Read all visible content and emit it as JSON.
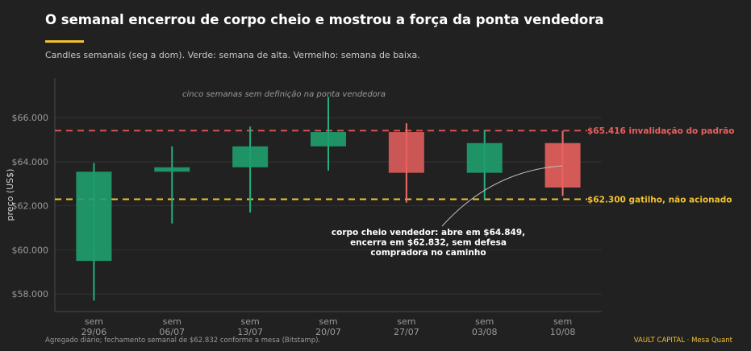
{
  "header": {
    "title": "O semanal encerrou de corpo cheio e mostrou a força da ponta vendedora",
    "subtitle": "Candles semanais (seg a dom). Verde: semana de alta. Vermelho: semana de baixa."
  },
  "footer": {
    "source": "Agregado diário; fechamento semanal de $62.832 conforme a mesa (Bitstamp).",
    "brand": "VAULT CAPITAL  ·  Mesa Quant"
  },
  "colors": {
    "background": "#212121",
    "up": "#1f9e6e",
    "down": "#e8605e",
    "trigger": "#f2c12e",
    "invalidation": "#d9534f"
  },
  "chart_data": {
    "type": "candlestick",
    "ylabel": "preço (US$)",
    "ylim": [
      57200,
      67800
    ],
    "yticks": [
      58000,
      60000,
      62000,
      64000,
      66000
    ],
    "ytick_labels": [
      "$58.000",
      "$60.000",
      "$62.000",
      "$64.000",
      "$66.000"
    ],
    "grid": true,
    "categories": [
      [
        "sem",
        "29/06"
      ],
      [
        "sem",
        "06/07"
      ],
      [
        "sem",
        "13/07"
      ],
      [
        "sem",
        "20/07"
      ],
      [
        "sem",
        "27/07"
      ],
      [
        "sem",
        "03/08"
      ],
      [
        "sem",
        "10/08"
      ]
    ],
    "candles": [
      {
        "open": 59500,
        "high": 63950,
        "low": 57700,
        "close": 63550
      },
      {
        "open": 63550,
        "high": 64700,
        "low": 61200,
        "close": 63750
      },
      {
        "open": 63750,
        "high": 65600,
        "low": 61700,
        "close": 64700
      },
      {
        "open": 64700,
        "high": 66950,
        "low": 63600,
        "close": 65350
      },
      {
        "open": 65350,
        "high": 65750,
        "low": 62150,
        "close": 63500
      },
      {
        "open": 63500,
        "high": 65450,
        "low": 62300,
        "close": 64849
      },
      {
        "open": 64849,
        "high": 65400,
        "low": 62450,
        "close": 62832
      }
    ],
    "levels": [
      {
        "value": 65416,
        "label": "$65.416  invalidação do padrão",
        "role": "invalidation"
      },
      {
        "value": 62300,
        "label": "$62.300  gatilho, não acionado",
        "role": "trigger"
      }
    ],
    "annotations": {
      "top_note": "cinco semanas sem definição na ponta vendedora",
      "callout": [
        "corpo cheio vendedor: abre em $64.849,",
        "encerra em $62.832, sem defesa",
        "compradora no caminho"
      ]
    }
  }
}
